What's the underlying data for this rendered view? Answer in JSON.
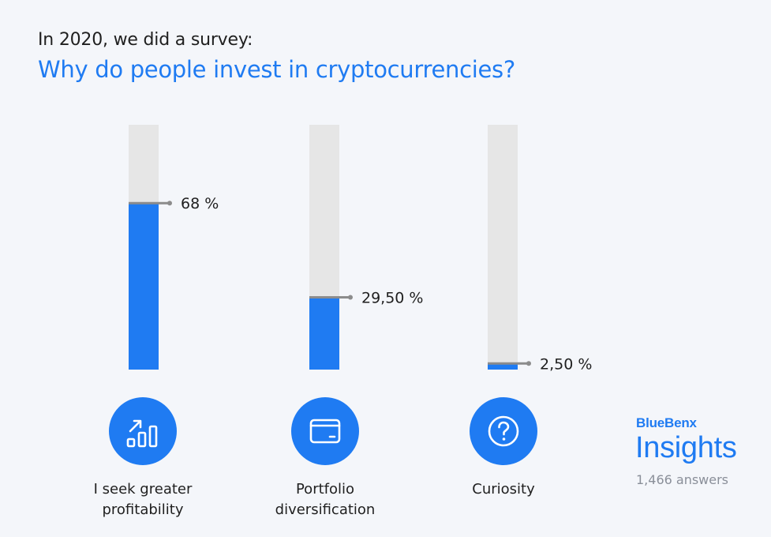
{
  "header": {
    "subtitle": "In 2020, we did a survey:",
    "title": "Why do people invest in cryptocurrencies?"
  },
  "chart_data": {
    "type": "bar",
    "title": "Why do people invest in cryptocurrencies?",
    "categories": [
      "I seek greater\nprofitability",
      "Portfolio\ndiversification",
      "Curiosity"
    ],
    "values": [
      68,
      29.5,
      2.5
    ],
    "value_labels": [
      "68 %",
      "29,50 %",
      "2,50 %"
    ],
    "ylim": [
      0,
      100
    ],
    "grid": false,
    "legend": "none"
  },
  "categories": [
    {
      "label": "I seek greater\nprofitability",
      "icon": "growth-chart-icon"
    },
    {
      "label": "Portfolio\ndiversification",
      "icon": "wallet-icon"
    },
    {
      "label": "Curiosity",
      "icon": "question-icon"
    }
  ],
  "brand": {
    "name": "BlueBenx",
    "product": "Insights",
    "answers": "1,466 answers"
  },
  "colors": {
    "accent": "#1f7bf2",
    "track": "#e6e6e6",
    "marker": "#8c8c8c",
    "background": "#f4f6fa"
  }
}
